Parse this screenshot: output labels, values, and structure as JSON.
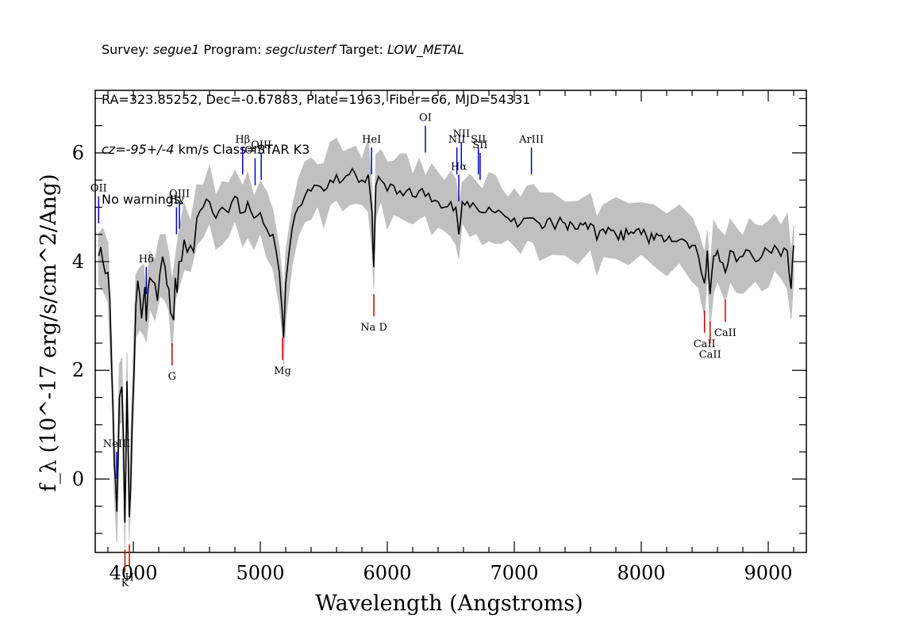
{
  "header": {
    "line1": {
      "survey_label": "Survey: ",
      "survey": "segue1",
      "program_label": " Program: ",
      "program": "segclusterf",
      "target_label": " Target: ",
      "target": "LOW_METAL"
    },
    "line2": "RA=323.85252, Dec=-0.67883, Plate=1963, Fiber=66, MJD=54331",
    "line3": {
      "cz": "cz=-95+/-4",
      "rest": " km/s Class=STAR K3"
    },
    "line4": "No warnings."
  },
  "colors": {
    "spectrum": "#000000",
    "error_band": "#c0c0c0",
    "emission": "#0000cc",
    "absorption": "#cc0000"
  },
  "chart_data": {
    "type": "line",
    "xlabel": "Wavelength (Angstroms)",
    "ylabel": "f_λ (10^-17 erg/s/cm^2/Ang)",
    "xlim": [
      3700,
      9300
    ],
    "ylim": [
      -1.35,
      7.15
    ],
    "x_ticks": [
      "4000",
      "5000",
      "6000",
      "7000",
      "8000",
      "9000"
    ],
    "y_ticks": [
      "0",
      "2",
      "4",
      "6"
    ],
    "series": [
      {
        "x": [
          3727,
          3760,
          3800,
          3830,
          3850,
          3870,
          3890,
          3910,
          3933,
          3950,
          3968,
          3990,
          4020,
          4050,
          4080,
          4102,
          4130,
          4170,
          4210,
          4250,
          4280,
          4305,
          4330,
          4360,
          4400,
          4450,
          4500,
          4550,
          4600,
          4650,
          4700,
          4750,
          4800,
          4861,
          4900,
          4950,
          5000,
          5050,
          5100,
          5150,
          5172,
          5183,
          5200,
          5250,
          5300,
          5350,
          5400,
          5450,
          5500,
          5550,
          5600,
          5650,
          5700,
          5750,
          5800,
          5850,
          5880,
          5893,
          5910,
          5950,
          6000,
          6050,
          6100,
          6150,
          6200,
          6250,
          6300,
          6350,
          6400,
          6450,
          6500,
          6540,
          6563,
          6590,
          6650,
          6700,
          6750,
          6800,
          6850,
          6900,
          6950,
          7000,
          7050,
          7100,
          7150,
          7200,
          7300,
          7400,
          7500,
          7600,
          7650,
          7700,
          7800,
          7900,
          8000,
          8100,
          8200,
          8300,
          8400,
          8450,
          8498,
          8520,
          8542,
          8570,
          8600,
          8662,
          8700,
          8750,
          8800,
          8850,
          8900,
          8950,
          9000,
          9050,
          9100,
          9150,
          9180,
          9200
        ],
        "y": [
          4.1,
          4.0,
          3.8,
          2.0,
          0.3,
          -0.6,
          1.5,
          1.7,
          -0.8,
          1.8,
          -0.7,
          1.0,
          3.2,
          3.4,
          3.3,
          2.9,
          3.7,
          3.6,
          3.8,
          3.9,
          3.5,
          3.0,
          3.7,
          4.0,
          4.4,
          4.3,
          4.8,
          5.0,
          5.1,
          4.8,
          5.0,
          4.9,
          5.2,
          4.9,
          5.1,
          4.8,
          4.9,
          4.6,
          4.5,
          3.8,
          3.1,
          2.6,
          3.6,
          4.6,
          5.0,
          5.2,
          5.3,
          5.4,
          5.3,
          5.5,
          5.6,
          5.5,
          5.6,
          5.6,
          5.5,
          5.6,
          4.9,
          3.9,
          5.4,
          5.5,
          5.3,
          5.4,
          5.3,
          5.3,
          5.2,
          5.3,
          5.2,
          5.1,
          5.1,
          5.0,
          5.1,
          5.0,
          4.5,
          5.1,
          5.0,
          5.0,
          4.9,
          5.0,
          4.9,
          4.9,
          4.8,
          4.8,
          4.7,
          4.8,
          4.8,
          4.7,
          4.7,
          4.7,
          4.6,
          4.7,
          4.4,
          4.6,
          4.5,
          4.5,
          4.5,
          4.4,
          4.4,
          4.4,
          4.3,
          4.1,
          3.6,
          4.2,
          3.4,
          4.1,
          4.2,
          3.8,
          4.2,
          4.0,
          4.1,
          4.2,
          4.0,
          4.1,
          4.2,
          4.3,
          4.1,
          4.2,
          3.5,
          4.3
        ]
      }
    ],
    "emission_lines": [
      {
        "label": "OII",
        "wavelength": 3727
      },
      {
        "label": "NeIII",
        "wavelength": 3869
      },
      {
        "label": "Hδ",
        "wavelength": 4102
      },
      {
        "label": "Hγ",
        "wavelength": 4340
      },
      {
        "label": "OIII",
        "wavelength": 4363
      },
      {
        "label": "Hβ",
        "wavelength": 4861
      },
      {
        "label": "OIII",
        "wavelength": 4959
      },
      {
        "label": "OIII",
        "wavelength": 5007
      },
      {
        "label": "HeI",
        "wavelength": 5876
      },
      {
        "label": "OI",
        "wavelength": 6300
      },
      {
        "label": "NII",
        "wavelength": 6548
      },
      {
        "label": "Hα",
        "wavelength": 6563
      },
      {
        "label": "NII",
        "wavelength": 6583
      },
      {
        "label": "SII",
        "wavelength": 6717
      },
      {
        "label": "SII",
        "wavelength": 6731
      },
      {
        "label": "ArIII",
        "wavelength": 7135
      }
    ],
    "absorption_lines": [
      {
        "label": "K",
        "wavelength": 3934
      },
      {
        "label": "H",
        "wavelength": 3969
      },
      {
        "label": "G",
        "wavelength": 4305
      },
      {
        "label": "Mg",
        "wavelength": 5175
      },
      {
        "label": "Na D",
        "wavelength": 5894
      },
      {
        "label": "CaII",
        "wavelength": 8498
      },
      {
        "label": "CaII",
        "wavelength": 8542
      },
      {
        "label": "CaII",
        "wavelength": 8662
      }
    ]
  }
}
